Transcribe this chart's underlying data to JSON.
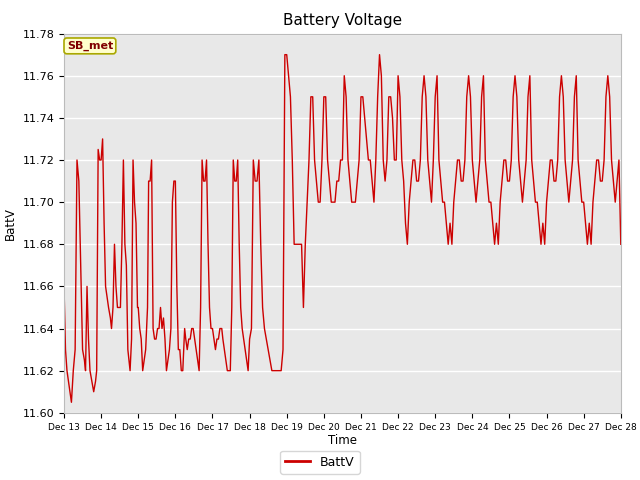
{
  "title": "Battery Voltage",
  "xlabel": "Time",
  "ylabel": "BattV",
  "legend_label": "BattV",
  "ylim": [
    11.6,
    11.78
  ],
  "xlim": [
    0,
    15
  ],
  "line_color": "#cc0000",
  "line_width": 1.0,
  "background_color": "#ffffff",
  "plot_bg_color": "#e8e8e8",
  "grid_color": "#ffffff",
  "annotation_text": "SB_met",
  "annotation_bg": "#ffffcc",
  "annotation_border": "#aaa800",
  "x_tick_labels": [
    "Dec 13",
    "Dec 14",
    "Dec 15",
    "Dec 16",
    "Dec 17",
    "Dec 18",
    "Dec 19",
    "Dec 20",
    "Dec 21",
    "Dec 22",
    "Dec 23",
    "Dec 24",
    "Dec 25",
    "Dec 26",
    "Dec 27",
    "Dec 28"
  ],
  "x_tick_positions": [
    0,
    1,
    2,
    3,
    4,
    5,
    6,
    7,
    8,
    9,
    10,
    11,
    12,
    13,
    14,
    15
  ],
  "y_ticks": [
    11.6,
    11.62,
    11.64,
    11.66,
    11.68,
    11.7,
    11.72,
    11.74,
    11.76,
    11.78
  ],
  "data_x": [
    0.0,
    0.04,
    0.08,
    0.12,
    0.16,
    0.2,
    0.25,
    0.3,
    0.35,
    0.4,
    0.45,
    0.5,
    0.55,
    0.58,
    0.62,
    0.66,
    0.7,
    0.75,
    0.8,
    0.85,
    0.88,
    0.92,
    0.96,
    1.0,
    1.04,
    1.08,
    1.12,
    1.16,
    1.2,
    1.25,
    1.28,
    1.32,
    1.36,
    1.4,
    1.44,
    1.48,
    1.52,
    1.56,
    1.6,
    1.64,
    1.68,
    1.72,
    1.75,
    1.78,
    1.82,
    1.86,
    1.9,
    1.94,
    1.98,
    2.0,
    2.04,
    2.08,
    2.12,
    2.16,
    2.2,
    2.25,
    2.28,
    2.32,
    2.36,
    2.4,
    2.44,
    2.48,
    2.52,
    2.56,
    2.6,
    2.64,
    2.68,
    2.72,
    2.76,
    2.8,
    2.84,
    2.88,
    2.92,
    2.96,
    3.0,
    3.04,
    3.08,
    3.12,
    3.16,
    3.2,
    3.25,
    3.28,
    3.32,
    3.36,
    3.4,
    3.44,
    3.48,
    3.52,
    3.56,
    3.6,
    3.64,
    3.68,
    3.72,
    3.76,
    3.8,
    3.84,
    3.88,
    3.92,
    3.96,
    4.0,
    4.04,
    4.08,
    4.12,
    4.16,
    4.2,
    4.25,
    4.28,
    4.32,
    4.36,
    4.4,
    4.44,
    4.48,
    4.52,
    4.56,
    4.6,
    4.64,
    4.68,
    4.72,
    4.76,
    4.8,
    4.84,
    4.88,
    4.92,
    4.96,
    5.0,
    5.05,
    5.1,
    5.15,
    5.2,
    5.25,
    5.3,
    5.35,
    5.4,
    5.45,
    5.5,
    5.55,
    5.6,
    5.65,
    5.7,
    5.75,
    5.8,
    5.85,
    5.9,
    5.95,
    6.0,
    6.05,
    6.1,
    6.15,
    6.2,
    6.25,
    6.3,
    6.35,
    6.4,
    6.45,
    6.5,
    6.55,
    6.6,
    6.65,
    6.7,
    6.75,
    6.8,
    6.85,
    6.9,
    6.95,
    7.0,
    7.05,
    7.1,
    7.15,
    7.2,
    7.25,
    7.3,
    7.35,
    7.4,
    7.45,
    7.5,
    7.55,
    7.6,
    7.65,
    7.7,
    7.75,
    7.8,
    7.85,
    7.9,
    7.95,
    8.0,
    8.05,
    8.1,
    8.15,
    8.2,
    8.25,
    8.3,
    8.35,
    8.4,
    8.45,
    8.5,
    8.55,
    8.6,
    8.65,
    8.7,
    8.75,
    8.8,
    8.85,
    8.9,
    8.95,
    9.0,
    9.05,
    9.1,
    9.15,
    9.2,
    9.25,
    9.3,
    9.35,
    9.4,
    9.45,
    9.5,
    9.55,
    9.6,
    9.65,
    9.7,
    9.75,
    9.8,
    9.85,
    9.9,
    9.95,
    10.0,
    10.05,
    10.1,
    10.15,
    10.2,
    10.25,
    10.3,
    10.35,
    10.4,
    10.45,
    10.5,
    10.55,
    10.6,
    10.65,
    10.7,
    10.75,
    10.8,
    10.85,
    10.9,
    10.95,
    11.0,
    11.05,
    11.1,
    11.15,
    11.2,
    11.25,
    11.3,
    11.35,
    11.4,
    11.45,
    11.5,
    11.55,
    11.6,
    11.65,
    11.7,
    11.75,
    11.8,
    11.85,
    11.9,
    11.95,
    12.0,
    12.05,
    12.1,
    12.15,
    12.2,
    12.25,
    12.3,
    12.35,
    12.4,
    12.45,
    12.5,
    12.55,
    12.6,
    12.65,
    12.7,
    12.75,
    12.8,
    12.85,
    12.9,
    12.95,
    13.0,
    13.05,
    13.1,
    13.15,
    13.2,
    13.25,
    13.3,
    13.35,
    13.4,
    13.45,
    13.5,
    13.55,
    13.6,
    13.65,
    13.7,
    13.75,
    13.8,
    13.85,
    13.9,
    13.95,
    14.0,
    14.05,
    14.1,
    14.15,
    14.2,
    14.25,
    14.3,
    14.35,
    14.4,
    14.45,
    14.5,
    14.55,
    14.6,
    14.65,
    14.7,
    14.75,
    14.8,
    14.85,
    14.9,
    14.95,
    15.0
  ],
  "data_y": [
    11.66,
    11.63,
    11.62,
    11.615,
    11.61,
    11.605,
    11.62,
    11.63,
    11.72,
    11.71,
    11.67,
    11.63,
    11.625,
    11.62,
    11.66,
    11.635,
    11.62,
    11.615,
    11.61,
    11.615,
    11.62,
    11.725,
    11.72,
    11.72,
    11.73,
    11.69,
    11.66,
    11.655,
    11.65,
    11.645,
    11.64,
    11.65,
    11.68,
    11.66,
    11.65,
    11.65,
    11.65,
    11.68,
    11.72,
    11.68,
    11.67,
    11.63,
    11.625,
    11.62,
    11.635,
    11.72,
    11.7,
    11.69,
    11.65,
    11.65,
    11.64,
    11.635,
    11.62,
    11.625,
    11.63,
    11.65,
    11.71,
    11.71,
    11.72,
    11.64,
    11.635,
    11.635,
    11.64,
    11.64,
    11.65,
    11.64,
    11.645,
    11.635,
    11.62,
    11.625,
    11.63,
    11.64,
    11.7,
    11.71,
    11.71,
    11.66,
    11.63,
    11.63,
    11.62,
    11.62,
    11.64,
    11.635,
    11.63,
    11.635,
    11.635,
    11.64,
    11.64,
    11.635,
    11.63,
    11.625,
    11.62,
    11.65,
    11.72,
    11.71,
    11.71,
    11.72,
    11.68,
    11.65,
    11.64,
    11.64,
    11.635,
    11.63,
    11.635,
    11.635,
    11.64,
    11.64,
    11.635,
    11.63,
    11.625,
    11.62,
    11.62,
    11.62,
    11.65,
    11.72,
    11.71,
    11.71,
    11.72,
    11.68,
    11.65,
    11.64,
    11.635,
    11.63,
    11.625,
    11.62,
    11.635,
    11.64,
    11.72,
    11.71,
    11.71,
    11.72,
    11.68,
    11.65,
    11.64,
    11.635,
    11.63,
    11.625,
    11.62,
    11.62,
    11.62,
    11.62,
    11.62,
    11.62,
    11.63,
    11.77,
    11.77,
    11.76,
    11.75,
    11.72,
    11.68,
    11.68,
    11.68,
    11.68,
    11.68,
    11.65,
    11.68,
    11.7,
    11.72,
    11.75,
    11.75,
    11.72,
    11.71,
    11.7,
    11.7,
    11.72,
    11.75,
    11.75,
    11.72,
    11.71,
    11.7,
    11.7,
    11.7,
    11.71,
    11.71,
    11.72,
    11.72,
    11.76,
    11.75,
    11.72,
    11.71,
    11.7,
    11.7,
    11.7,
    11.71,
    11.72,
    11.75,
    11.75,
    11.74,
    11.73,
    11.72,
    11.72,
    11.71,
    11.7,
    11.72,
    11.75,
    11.77,
    11.76,
    11.72,
    11.71,
    11.72,
    11.75,
    11.75,
    11.74,
    11.72,
    11.72,
    11.76,
    11.75,
    11.72,
    11.71,
    11.69,
    11.68,
    11.7,
    11.71,
    11.72,
    11.72,
    11.71,
    11.71,
    11.72,
    11.75,
    11.76,
    11.75,
    11.72,
    11.71,
    11.7,
    11.72,
    11.75,
    11.76,
    11.72,
    11.71,
    11.7,
    11.7,
    11.69,
    11.68,
    11.69,
    11.68,
    11.7,
    11.71,
    11.72,
    11.72,
    11.71,
    11.71,
    11.72,
    11.75,
    11.76,
    11.75,
    11.72,
    11.71,
    11.7,
    11.71,
    11.72,
    11.75,
    11.76,
    11.72,
    11.71,
    11.7,
    11.7,
    11.69,
    11.68,
    11.69,
    11.68,
    11.7,
    11.71,
    11.72,
    11.72,
    11.71,
    11.71,
    11.72,
    11.75,
    11.76,
    11.75,
    11.72,
    11.71,
    11.7,
    11.71,
    11.72,
    11.75,
    11.76,
    11.72,
    11.71,
    11.7,
    11.7,
    11.69,
    11.68,
    11.69,
    11.68,
    11.7,
    11.71,
    11.72,
    11.72,
    11.71,
    11.71,
    11.72,
    11.75,
    11.76,
    11.75,
    11.72,
    11.71,
    11.7,
    11.71,
    11.72,
    11.75,
    11.76,
    11.72,
    11.71,
    11.7,
    11.7,
    11.69,
    11.68,
    11.69,
    11.68,
    11.7,
    11.71,
    11.72,
    11.72,
    11.71,
    11.71,
    11.72,
    11.75,
    11.76,
    11.75,
    11.72,
    11.71,
    11.7,
    11.71,
    11.72,
    11.68
  ]
}
